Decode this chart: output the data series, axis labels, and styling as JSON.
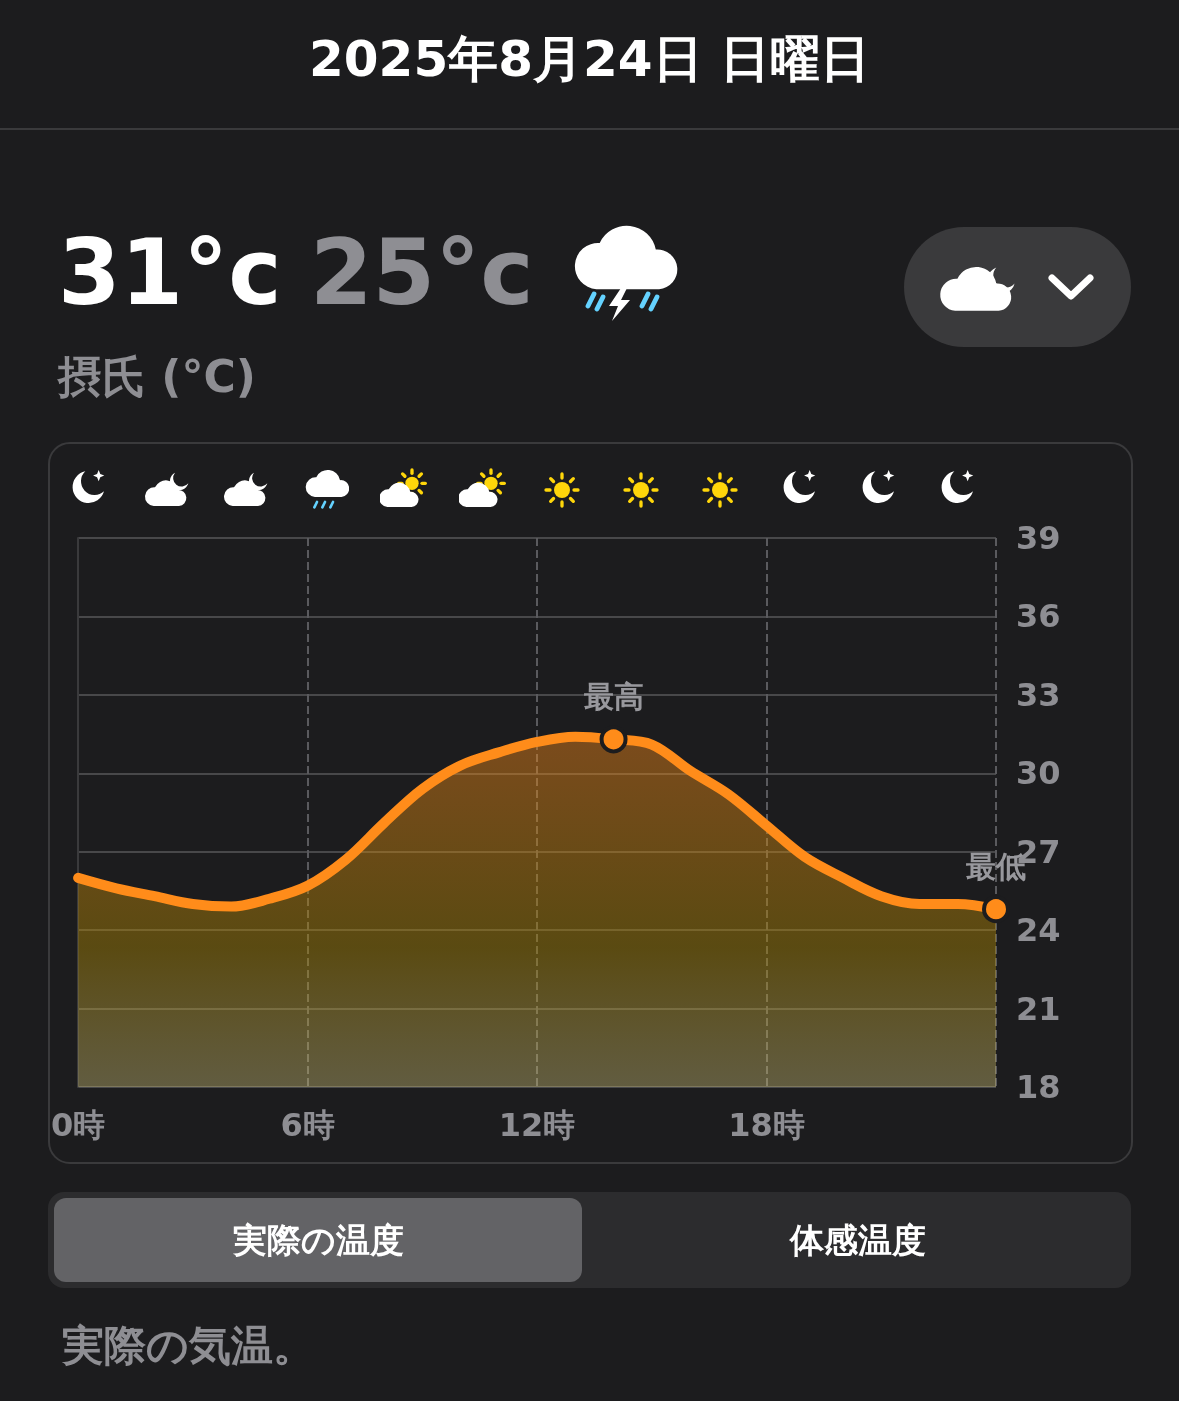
{
  "chart_data": {
    "type": "area",
    "title": "2025年8月24日 日曜日",
    "x": [
      0,
      1,
      2,
      3,
      4,
      5,
      6,
      7,
      8,
      9,
      10,
      11,
      12,
      13,
      14,
      15,
      16,
      17,
      18,
      19,
      20,
      21,
      22,
      23,
      24
    ],
    "series": [
      {
        "color": "#ff8c1a",
        "values": [
          26.0,
          25.6,
          25.3,
          25.0,
          24.9,
          25.2,
          25.7,
          26.7,
          28.1,
          29.4,
          30.3,
          30.8,
          31.2,
          31.4,
          31.3,
          31.1,
          30.1,
          29.2,
          28.0,
          26.8,
          26.0,
          25.3,
          25.0,
          25.0,
          24.8
        ]
      }
    ],
    "xlim": [
      0,
      24
    ],
    "xticks": [
      {
        "value": 0,
        "label": "0時"
      },
      {
        "value": 6,
        "label": "6時"
      },
      {
        "value": 12,
        "label": "12時"
      },
      {
        "value": 18,
        "label": "18時"
      },
      {
        "value": 24,
        "label": null
      }
    ],
    "ylim": [
      18,
      39
    ],
    "yticks": [
      18,
      21,
      24,
      27,
      30,
      33,
      36,
      39
    ],
    "grid": true,
    "marker": "none",
    "line_style": "solid",
    "annotations": [
      "31°c",
      "25°c",
      "摂氏 (°C)",
      "実際の温度",
      "体感温度",
      "実際の気温。",
      {
        "text": "最高",
        "x": 14,
        "y": 31.3
      },
      {
        "text": "最低",
        "x": 24,
        "y": 24.8
      }
    ]
  }
}
